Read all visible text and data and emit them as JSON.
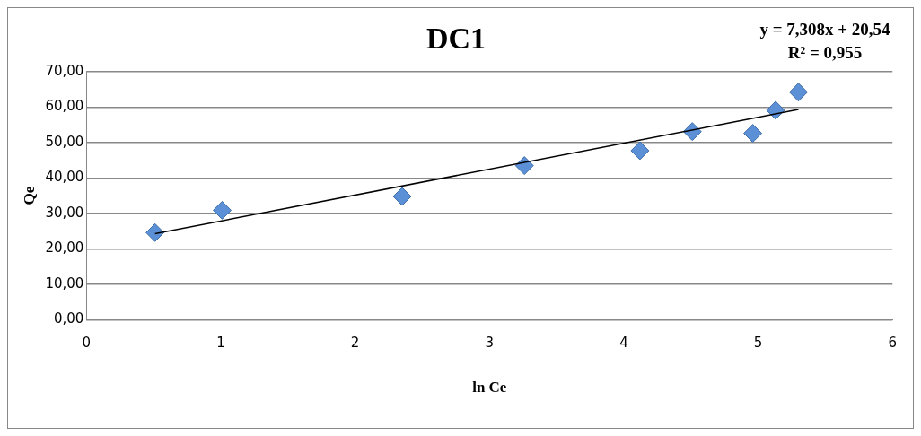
{
  "chart_data": {
    "type": "scatter",
    "title": "DC1",
    "xlabel": "ln Ce",
    "ylabel": "Qe",
    "annotations": [
      "y = 7,308x + 20,54",
      "R² = 0,955"
    ],
    "series": [
      {
        "type": "scatter",
        "color": "#5b8fd6",
        "x": [
          0.51,
          1.01,
          2.35,
          3.26,
          4.12,
          4.51,
          4.96,
          5.13,
          5.3
        ],
        "values": [
          24.6,
          30.9,
          34.8,
          43.5,
          47.7,
          53.1,
          52.6,
          59.1,
          64.2
        ],
        "marker": "diamond"
      },
      {
        "type": "line",
        "color": "#000000",
        "x": [
          0.51,
          5.3
        ],
        "values": [
          24.3,
          59.3
        ],
        "marker": "none",
        "line_style": "solid"
      }
    ],
    "xlim": [
      0,
      6
    ],
    "xticks": [
      0,
      1,
      2,
      3,
      4,
      5,
      6
    ],
    "ylim": [
      0,
      70
    ],
    "yticks": [
      {
        "value": 0,
        "label": "0,00"
      },
      {
        "value": 10,
        "label": "10,00"
      },
      {
        "value": 20,
        "label": "20,00"
      },
      {
        "value": 30,
        "label": "30,00"
      },
      {
        "value": 40,
        "label": "40,00"
      },
      {
        "value": 50,
        "label": "50,00"
      },
      {
        "value": 60,
        "label": "60,00"
      },
      {
        "value": 70,
        "label": "70,00"
      }
    ],
    "grid": "y",
    "legend": false
  }
}
